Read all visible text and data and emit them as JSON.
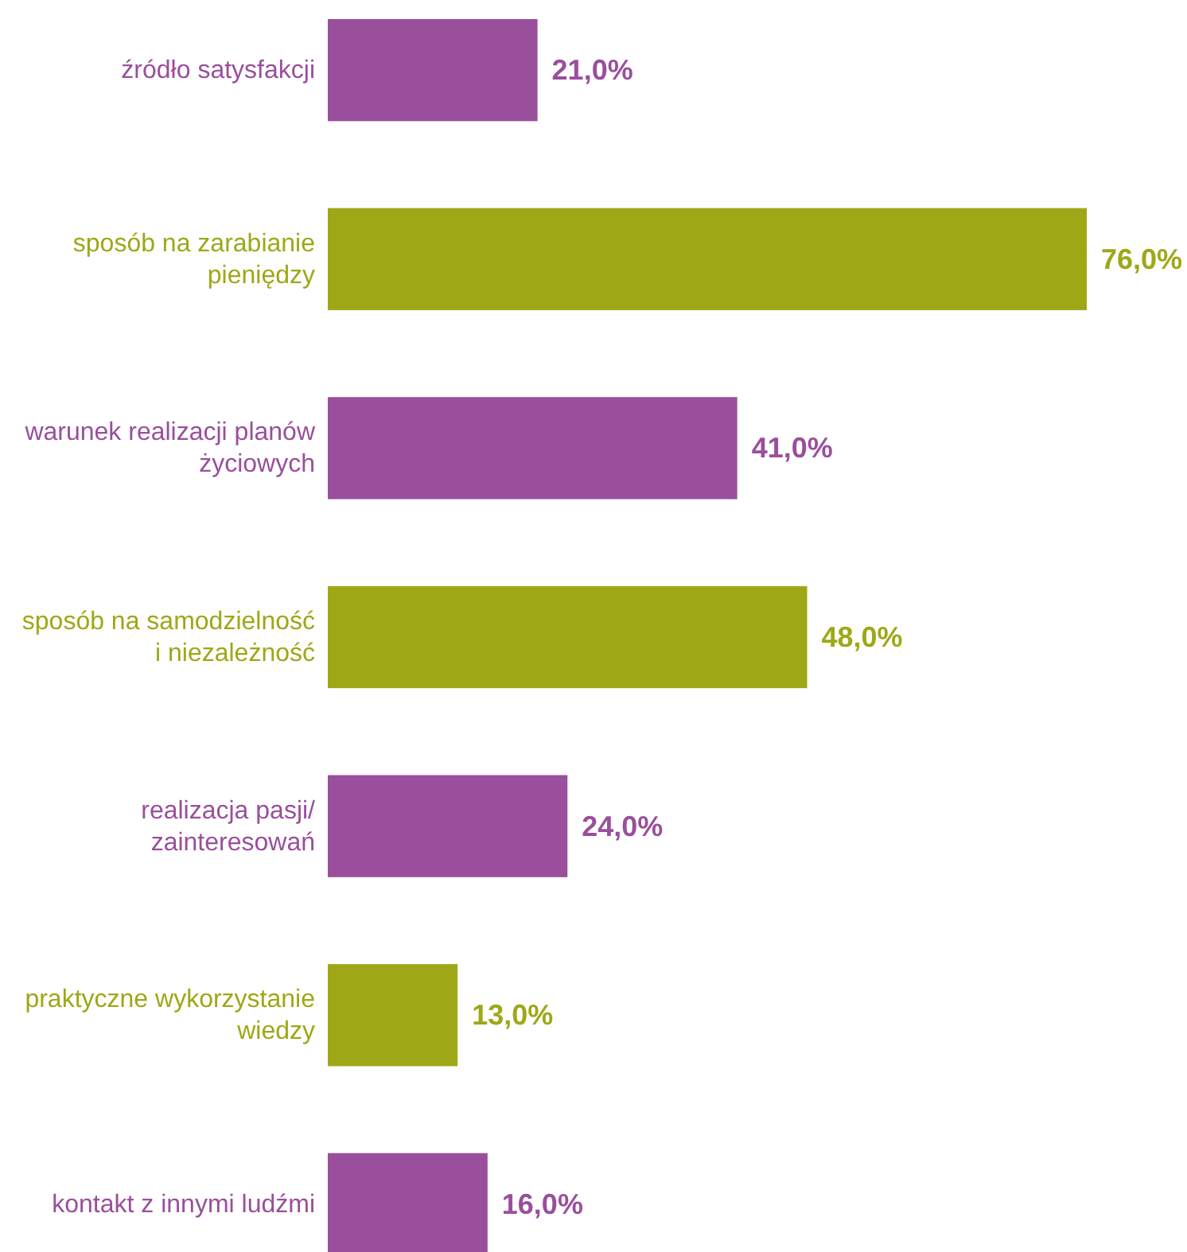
{
  "chart_data": {
    "type": "bar",
    "orientation": "horizontal",
    "categories": [
      "źródło satysfakcji",
      "sposób na zarabianie pieniędzy",
      "warunek realizacji planów życiowych",
      "sposób na samodzielność i niezależność",
      "realizacja pasji/zainteresowań",
      "praktyczne wykorzystanie wiedzy",
      "kontakt z innymi ludźmi"
    ],
    "values": [
      21,
      76,
      41,
      48,
      24,
      13,
      16
    ],
    "value_labels": [
      "21,0%",
      "76,0%",
      "41,0%",
      "48,0%",
      "24,0%",
      "13,0%",
      "16,0%"
    ],
    "colors": [
      "#994f9c",
      "#9ea817",
      "#994f9c",
      "#9ea817",
      "#994f9c",
      "#9ea817",
      "#994f9c"
    ],
    "relative": false
  }
}
